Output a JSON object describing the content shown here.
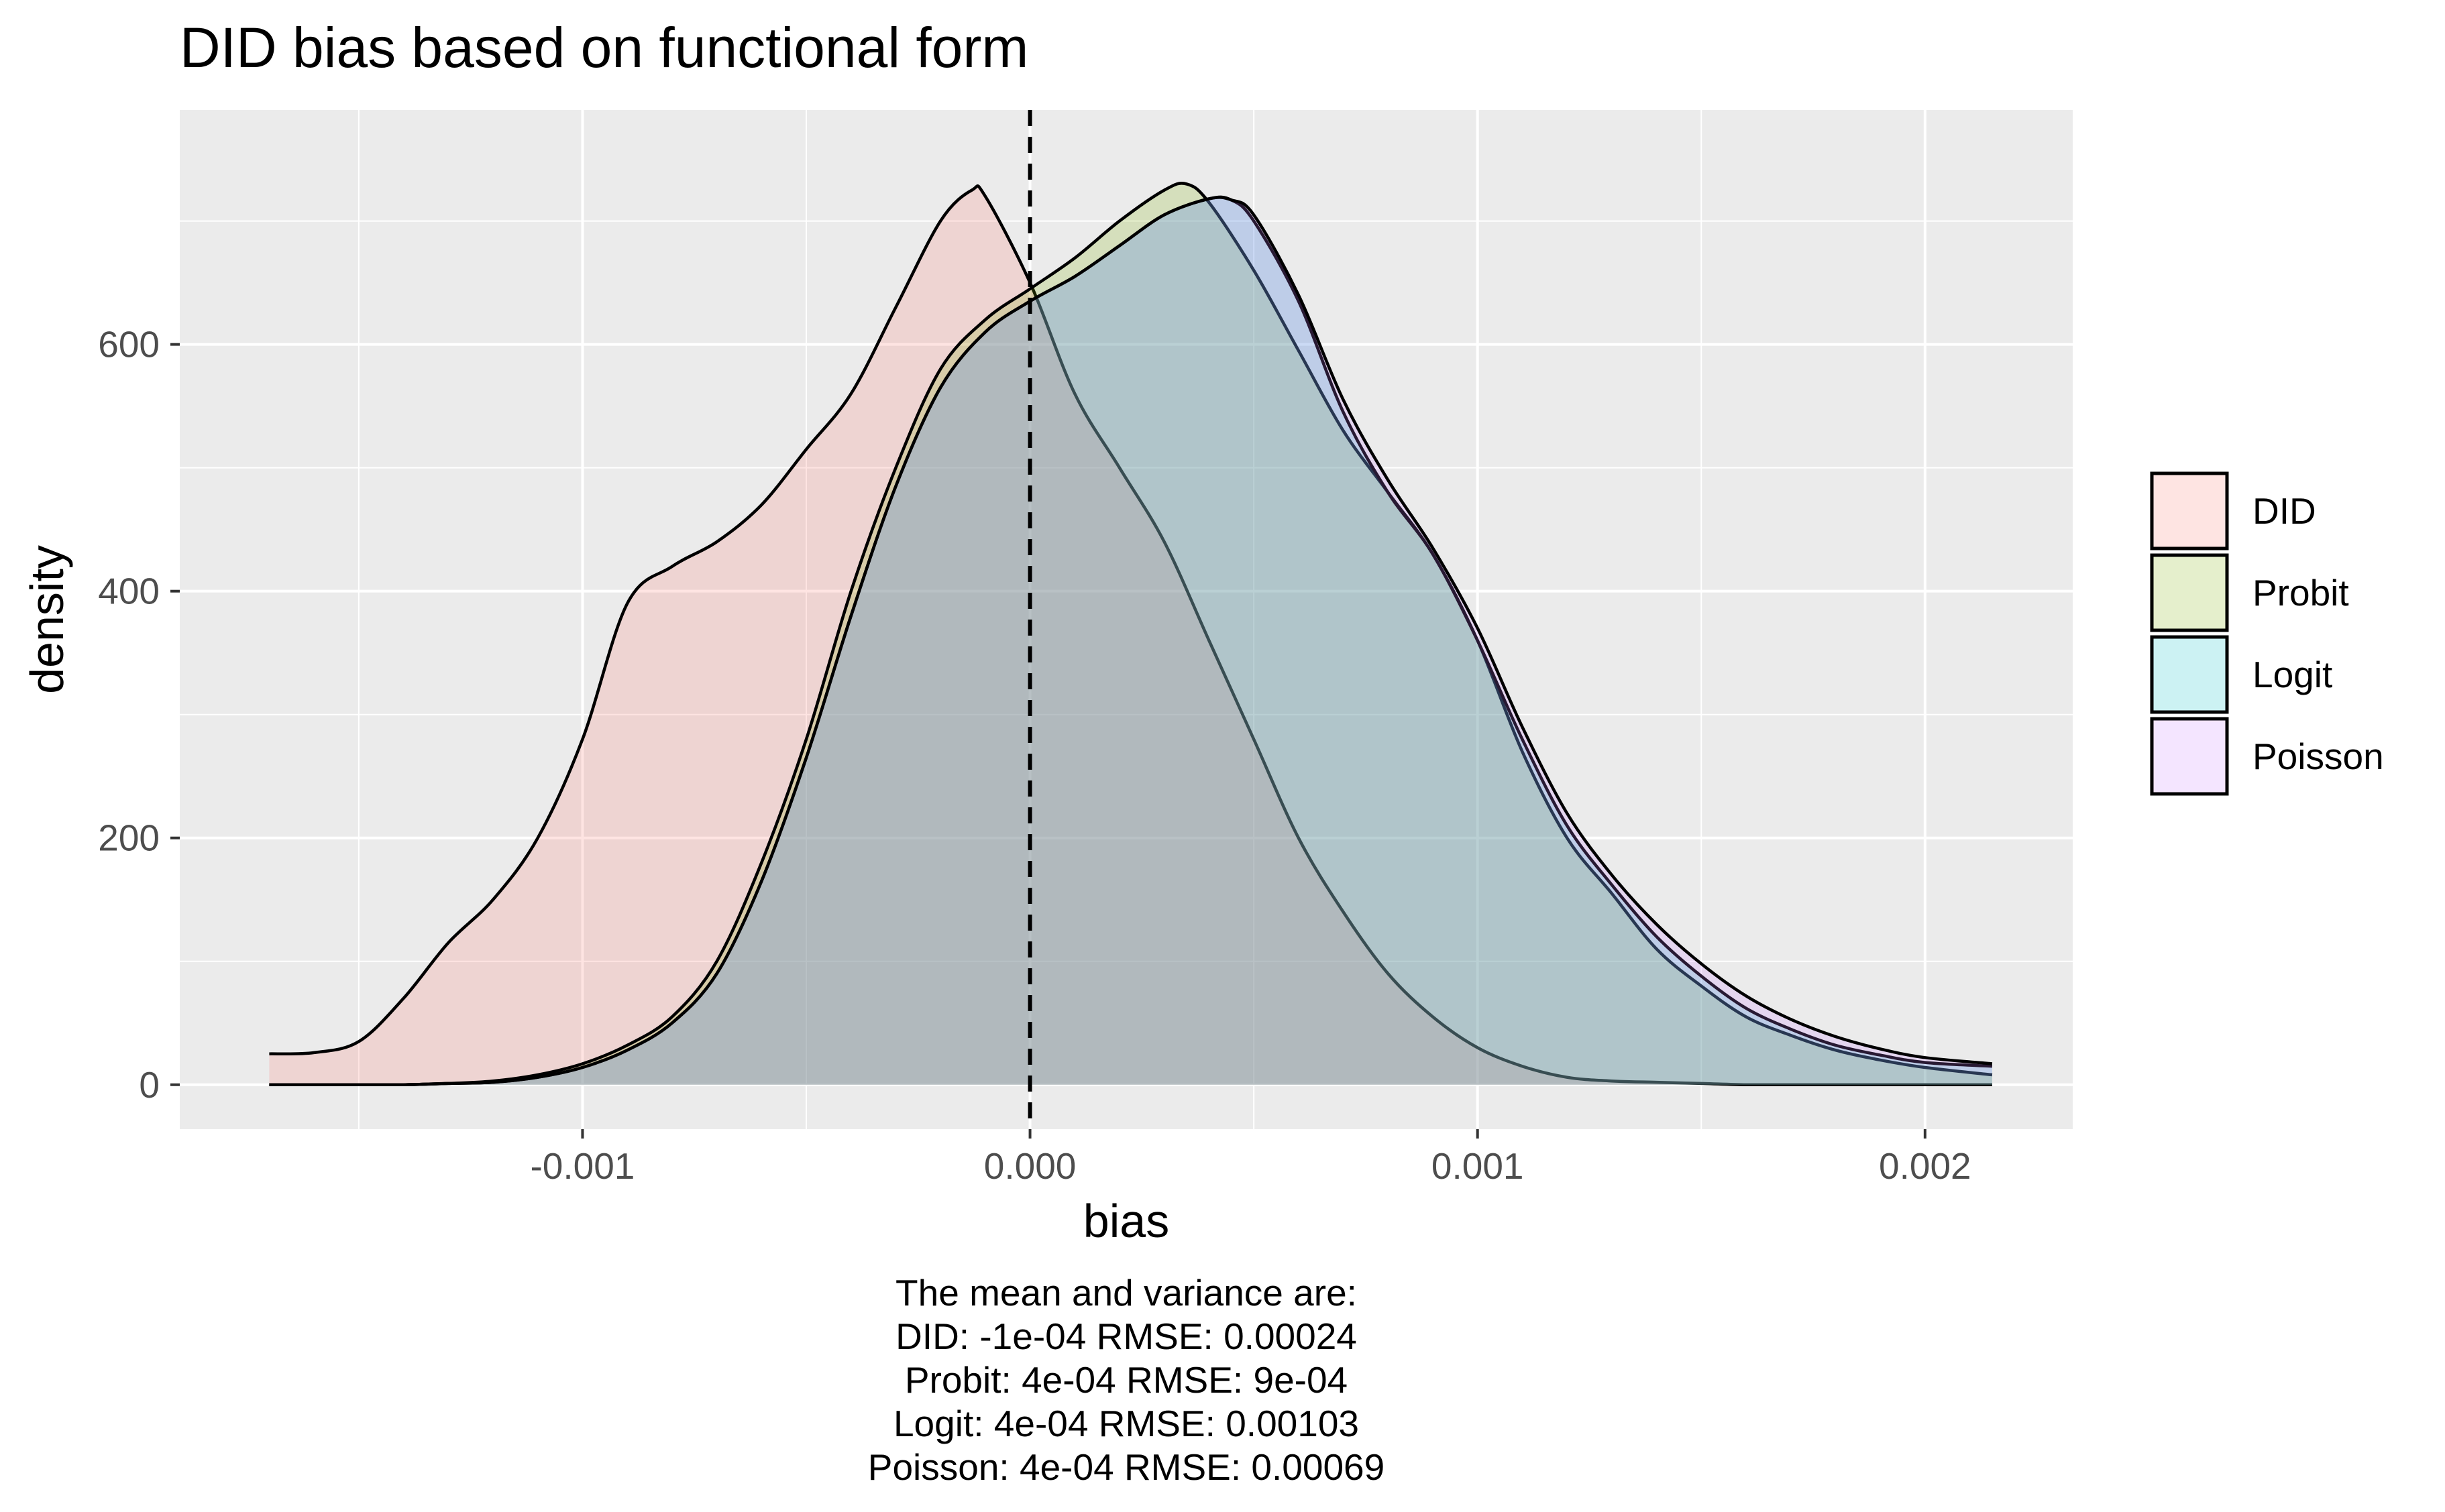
{
  "chart_data": {
    "type": "area",
    "title": "DID bias based on functional form",
    "xlabel": "bias",
    "ylabel": "density",
    "xlim": [
      -0.0019,
      0.00233
    ],
    "ylim": [
      -36,
      790
    ],
    "x_ticks": [
      -0.001,
      0.0,
      0.001,
      0.002
    ],
    "x_tick_labels": [
      "-0.001",
      "0.000",
      "0.001",
      "0.002"
    ],
    "y_ticks": [
      0,
      200,
      400,
      600
    ],
    "y_tick_labels": [
      "0",
      "200",
      "400",
      "600"
    ],
    "grid": true,
    "legend_position": "right",
    "reference_line": {
      "x": 0.0,
      "style": "dashed"
    },
    "series": [
      {
        "name": "DID",
        "color": "#F8766D",
        "x": [
          -0.0017,
          -0.0016,
          -0.0015,
          -0.0014,
          -0.0013,
          -0.0012,
          -0.0011,
          -0.001,
          -0.0009,
          -0.0008,
          -0.0007,
          -0.0006,
          -0.0005,
          -0.0004,
          -0.0003,
          -0.0002,
          -0.00013,
          -0.0001,
          0.0,
          0.0001,
          0.0002,
          0.0003,
          0.0004,
          0.0005,
          0.0006,
          0.0007,
          0.0008,
          0.0009,
          0.001,
          0.0011,
          0.0012,
          0.0013,
          0.0014,
          0.0015,
          0.0016,
          0.0017,
          0.0018,
          0.0019,
          0.002,
          0.00215
        ],
        "y": [
          25,
          26,
          35,
          70,
          115,
          150,
          200,
          280,
          390,
          420,
          440,
          470,
          515,
          560,
          630,
          700,
          725,
          720,
          650,
          560,
          500,
          440,
          360,
          280,
          200,
          140,
          90,
          55,
          30,
          15,
          6,
          3,
          2,
          1,
          0,
          0,
          0,
          0,
          0,
          0
        ]
      },
      {
        "name": "Probit",
        "color": "#7CAE00",
        "x": [
          -0.0017,
          -0.0016,
          -0.0015,
          -0.0014,
          -0.0013,
          -0.0012,
          -0.0011,
          -0.001,
          -0.0009,
          -0.0008,
          -0.0007,
          -0.0006,
          -0.0005,
          -0.0004,
          -0.0003,
          -0.0002,
          -0.0001,
          0.0,
          0.0001,
          0.0002,
          0.0003,
          0.00035,
          0.0004,
          0.0005,
          0.0006,
          0.0007,
          0.0008,
          0.0009,
          0.001,
          0.0011,
          0.0012,
          0.0013,
          0.0014,
          0.0015,
          0.0016,
          0.0017,
          0.0018,
          0.0019,
          0.002,
          0.00215
        ],
        "y": [
          0,
          0,
          0,
          0,
          1,
          3,
          8,
          17,
          32,
          55,
          100,
          180,
          280,
          400,
          500,
          580,
          620,
          645,
          670,
          700,
          725,
          730,
          715,
          660,
          595,
          530,
          480,
          430,
          360,
          270,
          200,
          155,
          110,
          80,
          55,
          40,
          28,
          20,
          14,
          8
        ]
      },
      {
        "name": "Logit",
        "color": "#00BFC4",
        "x": [
          -0.0017,
          -0.0016,
          -0.0015,
          -0.0014,
          -0.0013,
          -0.0012,
          -0.0011,
          -0.001,
          -0.0009,
          -0.0008,
          -0.0007,
          -0.0006,
          -0.0005,
          -0.0004,
          -0.0003,
          -0.0002,
          -0.0001,
          0.0,
          0.0001,
          0.0002,
          0.0003,
          0.0004,
          0.00045,
          0.0005,
          0.0006,
          0.0007,
          0.0008,
          0.0009,
          0.001,
          0.0011,
          0.0012,
          0.0013,
          0.0014,
          0.0015,
          0.0016,
          0.0017,
          0.0018,
          0.0019,
          0.002,
          0.00215
        ],
        "y": [
          0,
          0,
          0,
          0,
          1,
          2,
          6,
          14,
          28,
          50,
          90,
          165,
          265,
          380,
          485,
          565,
          610,
          635,
          655,
          680,
          705,
          718,
          717,
          700,
          635,
          545,
          480,
          430,
          360,
          280,
          210,
          162,
          120,
          88,
          62,
          45,
          32,
          24,
          18,
          15
        ]
      },
      {
        "name": "Poisson",
        "color": "#C77CFF",
        "x": [
          -0.0017,
          -0.0016,
          -0.0015,
          -0.0014,
          -0.0013,
          -0.0012,
          -0.0011,
          -0.001,
          -0.0009,
          -0.0008,
          -0.0007,
          -0.0006,
          -0.0005,
          -0.0004,
          -0.0003,
          -0.0002,
          -0.0001,
          0.0,
          0.0001,
          0.0002,
          0.0003,
          0.0004,
          0.00045,
          0.0005,
          0.0006,
          0.0007,
          0.0008,
          0.0009,
          0.001,
          0.0011,
          0.0012,
          0.0013,
          0.0014,
          0.0015,
          0.0016,
          0.0017,
          0.0018,
          0.0019,
          0.002,
          0.00215
        ],
        "y": [
          0,
          0,
          0,
          0,
          1,
          2,
          6,
          14,
          28,
          50,
          90,
          165,
          265,
          380,
          485,
          565,
          610,
          635,
          655,
          680,
          705,
          718,
          717,
          705,
          640,
          555,
          490,
          435,
          370,
          290,
          220,
          170,
          130,
          98,
          72,
          53,
          39,
          29,
          22,
          17
        ]
      }
    ],
    "caption": [
      "The mean and variance are:",
      "DID: -1e-04 RMSE: 0.00024",
      "Probit: 4e-04 RMSE: 9e-04",
      "Logit: 4e-04 RMSE: 0.00103",
      "Poisson: 4e-04 RMSE: 0.00069"
    ]
  }
}
